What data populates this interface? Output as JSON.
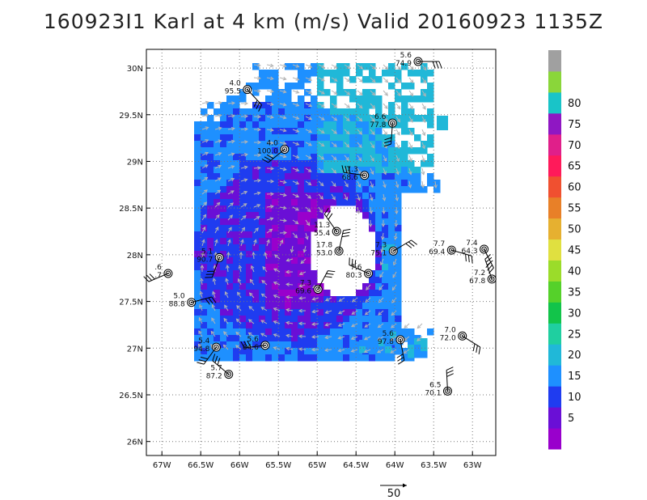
{
  "chart_data": {
    "type": "heatmap",
    "title": "160923I1 Karl at 4 km (m/s) Valid 20160923 1135Z",
    "xlim": [
      -67.2,
      -62.7
    ],
    "ylim": [
      25.85,
      30.2
    ],
    "x_ticks": [
      "67W",
      "66.5W",
      "66W",
      "65.5W",
      "65W",
      "64.5W",
      "64W",
      "63.5W",
      "63W"
    ],
    "x_tick_values": [
      -67,
      -66.5,
      -66,
      -65.5,
      -65,
      -64.5,
      -64,
      -63.5,
      -63
    ],
    "y_ticks": [
      "26N",
      "26.5N",
      "27N",
      "27.5N",
      "28N",
      "28.5N",
      "29N",
      "29.5N",
      "30N"
    ],
    "y_tick_values": [
      26,
      26.5,
      27,
      27.5,
      28,
      28.5,
      29,
      29.5,
      30
    ],
    "grid": true,
    "colorbar": {
      "labels": [
        "5",
        "10",
        "15",
        "20",
        "25",
        "30",
        "35",
        "40",
        "45",
        "50",
        "55",
        "60",
        "65",
        "70",
        "75",
        "80"
      ],
      "label_values": [
        5,
        10,
        15,
        20,
        25,
        30,
        35,
        40,
        45,
        50,
        55,
        60,
        65,
        70,
        75,
        80
      ],
      "colors": [
        "#9900cc",
        "#6a0fd6",
        "#1f3cf0",
        "#1e90ff",
        "#20b8d8",
        "#1fcfa0",
        "#12c44a",
        "#55d12a",
        "#9bdc2a",
        "#e0e040",
        "#e6b030",
        "#e88028",
        "#f05030",
        "#ff1a5a",
        "#e01f8a",
        "#8f17c3",
        "#19c4c8",
        "#8ad63a",
        "#a0a0a0"
      ],
      "bins": [
        0,
        5,
        10,
        15,
        20,
        25,
        30,
        35,
        40,
        45,
        50,
        55,
        60,
        65,
        70,
        75,
        80,
        85
      ]
    },
    "reference_vector": "50",
    "observations": [
      {
        "lon": -63.7,
        "lat": 30.07,
        "top": "5.6",
        "bottom": "74.9"
      },
      {
        "lon": -65.9,
        "lat": 29.77,
        "top": "4.0",
        "bottom": "95.5"
      },
      {
        "lon": -64.03,
        "lat": 29.41,
        "top": "6.6",
        "bottom": "77.8"
      },
      {
        "lon": -65.42,
        "lat": 29.13,
        "top": "4.0",
        "bottom": "100.0"
      },
      {
        "lon": -64.39,
        "lat": 28.85,
        "top": "7.3",
        "bottom": "68.6"
      },
      {
        "lon": -64.75,
        "lat": 28.25,
        "top": "11.3",
        "bottom": "55.4"
      },
      {
        "lon": -64.72,
        "lat": 28.04,
        "top": "17.8",
        "bottom": "53.0"
      },
      {
        "lon": -64.02,
        "lat": 28.04,
        "top": "7.3",
        "bottom": "75.1"
      },
      {
        "lon": -63.27,
        "lat": 28.05,
        "top": "7.7",
        "bottom": "69.4"
      },
      {
        "lon": -62.85,
        "lat": 28.06,
        "top": "7.4",
        "bottom": "64.3"
      },
      {
        "lon": -66.26,
        "lat": 27.97,
        "top": "5.1",
        "bottom": "90.7"
      },
      {
        "lon": -66.92,
        "lat": 27.8,
        "top": ".6",
        "bottom": ".7"
      },
      {
        "lon": -64.34,
        "lat": 27.8,
        "top": "7.6",
        "bottom": "80.3"
      },
      {
        "lon": -62.75,
        "lat": 27.74,
        "top": "7.2",
        "bottom": "67.8"
      },
      {
        "lon": -64.99,
        "lat": 27.63,
        "top": "7.3",
        "bottom": "69.6"
      },
      {
        "lon": -66.62,
        "lat": 27.49,
        "top": "5.0",
        "bottom": "88.8"
      },
      {
        "lon": -63.13,
        "lat": 27.13,
        "top": "7.0",
        "bottom": "72.0"
      },
      {
        "lon": -63.93,
        "lat": 27.09,
        "top": "5.6",
        "bottom": "97.8"
      },
      {
        "lon": -66.3,
        "lat": 27.01,
        "top": "5.4",
        "bottom": "94.8"
      },
      {
        "lon": -65.67,
        "lat": 27.03,
        "top": "5.6",
        "bottom": "84.6"
      },
      {
        "lon": -66.14,
        "lat": 26.72,
        "top": "5.7",
        "bottom": "87.2"
      },
      {
        "lon": -63.32,
        "lat": 26.54,
        "top": "6.5",
        "bottom": "70.1"
      }
    ]
  }
}
